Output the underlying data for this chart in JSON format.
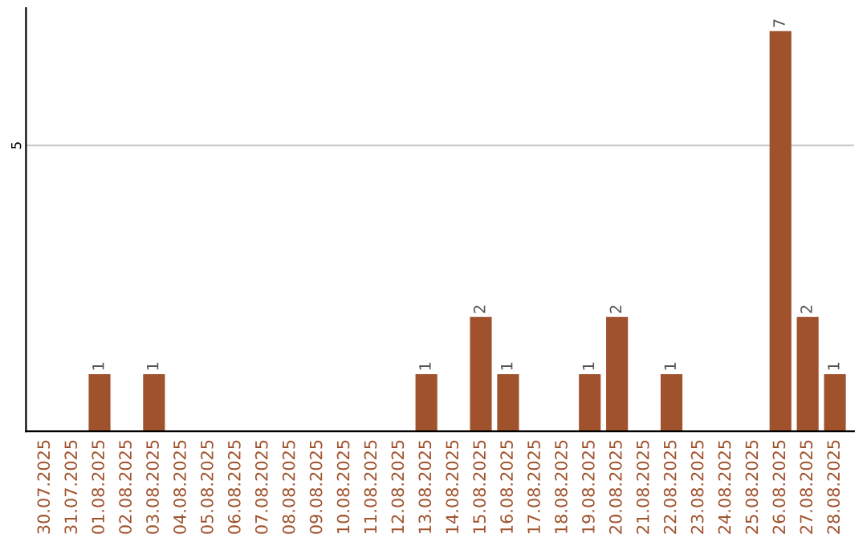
{
  "chart_data": {
    "type": "bar",
    "categories": [
      "30.07.2025",
      "31.07.2025",
      "01.08.2025",
      "02.08.2025",
      "03.08.2025",
      "04.08.2025",
      "05.08.2025",
      "06.08.2025",
      "07.08.2025",
      "08.08.2025",
      "09.08.2025",
      "10.08.2025",
      "11.08.2025",
      "12.08.2025",
      "13.08.2025",
      "14.08.2025",
      "15.08.2025",
      "16.08.2025",
      "17.08.2025",
      "18.08.2025",
      "19.08.2025",
      "20.08.2025",
      "21.08.2025",
      "22.08.2025",
      "23.08.2025",
      "24.08.2025",
      "25.08.2025",
      "26.08.2025",
      "27.08.2025",
      "28.08.2025"
    ],
    "values": [
      0,
      0,
      1,
      0,
      1,
      0,
      0,
      0,
      0,
      0,
      0,
      0,
      0,
      0,
      1,
      0,
      2,
      1,
      0,
      0,
      1,
      2,
      0,
      1,
      0,
      0,
      0,
      7,
      2,
      1
    ],
    "value_labels": [
      null,
      null,
      "1",
      null,
      "1",
      null,
      null,
      null,
      null,
      null,
      null,
      null,
      null,
      null,
      "1",
      null,
      "2",
      "1",
      null,
      null,
      "1",
      "2",
      null,
      "1",
      null,
      null,
      null,
      "7",
      "2",
      "1"
    ],
    "color": "#a0522d",
    "ylim": [
      0,
      7.4
    ],
    "yticks": [
      5
    ],
    "grid": "y",
    "legend": false
  }
}
